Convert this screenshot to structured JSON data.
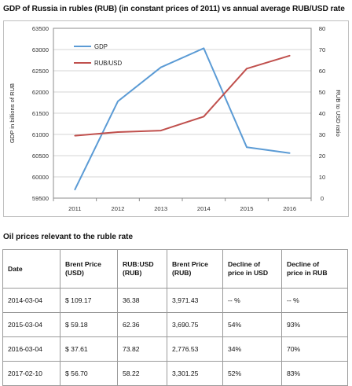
{
  "chart_title": "GDP of Russia in rubles (RUB) (in constant prices of 2011) vs annual average RUB/USD rate",
  "chart_data": {
    "type": "line",
    "title": "GDP of Russia in rubles (RUB) (in constant prices of 2011) vs annual average RUB/USD rate",
    "x": [
      "2011",
      "2012",
      "2013",
      "2014",
      "2015",
      "2016"
    ],
    "series": [
      {
        "name": "GDP",
        "axis": "left",
        "color": "#5b9bd5",
        "values": [
          59700,
          61780,
          62580,
          63030,
          60700,
          60560
        ]
      },
      {
        "name": "RUB/USD",
        "axis": "right",
        "color": "#c0504d",
        "values": [
          29.4,
          31.1,
          31.8,
          38.4,
          61.0,
          67.1
        ]
      }
    ],
    "ylabel": "GDP in billions of RUB",
    "ylabel_right": "RUB to USD ratio",
    "ylim": [
      59500,
      63500
    ],
    "yticks": [
      "59500",
      "60000",
      "60500",
      "61000",
      "61500",
      "62000",
      "62500",
      "63000",
      "63500"
    ],
    "ylim_right": [
      0,
      80
    ],
    "yticks_right": [
      "0",
      "10",
      "20",
      "30",
      "40",
      "50",
      "60",
      "70",
      "80"
    ],
    "grid": true,
    "legend": "top-left"
  },
  "table_title": "Oil prices relevant to the ruble rate",
  "table": {
    "headers": [
      "Date",
      "Brent Price\n(USD)",
      "RUB:USD\n(RUB)",
      "Brent Price\n(RUB)",
      "Decline of\nprice in USD",
      "Decline of\nprice in RUB"
    ],
    "rows": [
      [
        "2014-03-04",
        "$ 109.17",
        "36.38",
        "3,971.43",
        "-- %",
        "-- %"
      ],
      [
        "2015-03-04",
        "$ 59.18",
        "62.36",
        "3,690.75",
        "54%",
        "93%"
      ],
      [
        "2016-03-04",
        "$ 37.61",
        "73.82",
        "2,776.53",
        "34%",
        "70%"
      ],
      [
        "2017-02-10",
        "$ 56.70",
        "58.22",
        "3,301.25",
        "52%",
        "83%"
      ]
    ]
  }
}
